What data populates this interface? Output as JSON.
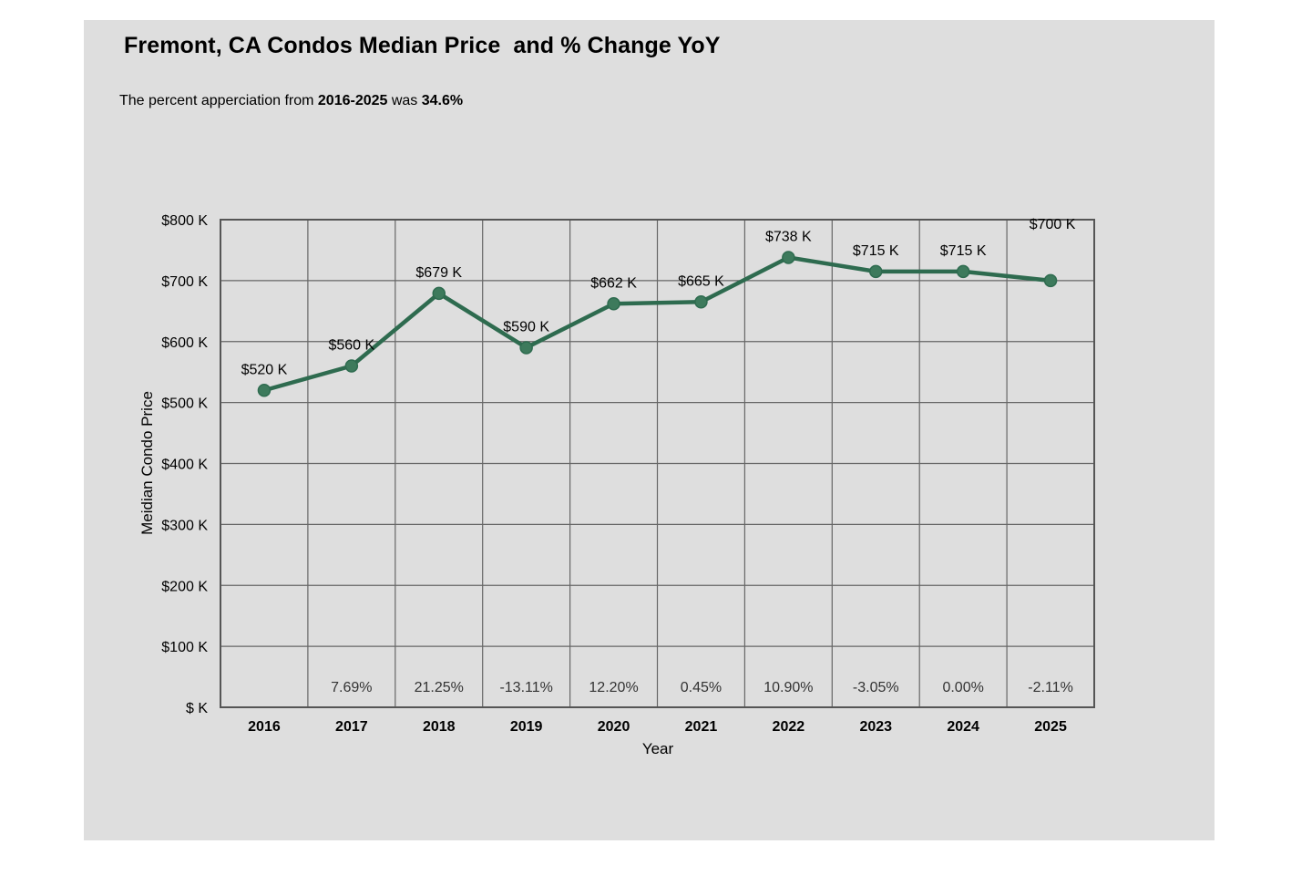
{
  "title": "Fremont, CA Condos Median Price  and % Change YoY",
  "subtitle": {
    "prefix": "The percent apperciation from ",
    "range": "2016-2025",
    "middle": " was ",
    "value": "34.6%"
  },
  "colors": {
    "line": "#2e6b4f",
    "marker": "#3d7a5c",
    "grid": "#666666",
    "background": "#dedede"
  },
  "chart_data": {
    "type": "line",
    "title": "Fremont, CA Condos Median Price  and % Change YoY",
    "xlabel": "Year",
    "ylabel": "Meidian Condo Price",
    "ylim": [
      0,
      800
    ],
    "y_ticks": [
      0,
      100,
      200,
      300,
      400,
      500,
      600,
      700,
      800
    ],
    "y_tick_labels": [
      "$ K",
      "$100 K",
      "$200 K",
      "$300 K",
      "$400 K",
      "$500 K",
      "$600 K",
      "$700 K",
      "$800 K"
    ],
    "categories": [
      "2016",
      "2017",
      "2018",
      "2019",
      "2020",
      "2021",
      "2022",
      "2023",
      "2024",
      "2025"
    ],
    "values": [
      520,
      560,
      679,
      590,
      662,
      665,
      738,
      715,
      715,
      700
    ],
    "value_labels": [
      "$520 K",
      "$560 K",
      "$679 K",
      "$590 K",
      "$662 K",
      "$665 K",
      "$738 K",
      "$715 K",
      "$715 K",
      "$700 K"
    ],
    "yoy_change_labels": [
      "",
      "7.69%",
      "21.25%",
      "-13.11%",
      "12.20%",
      "0.45%",
      "10.90%",
      "-3.05%",
      "0.00%",
      "-2.11%"
    ],
    "grid": true,
    "legend": "none"
  }
}
